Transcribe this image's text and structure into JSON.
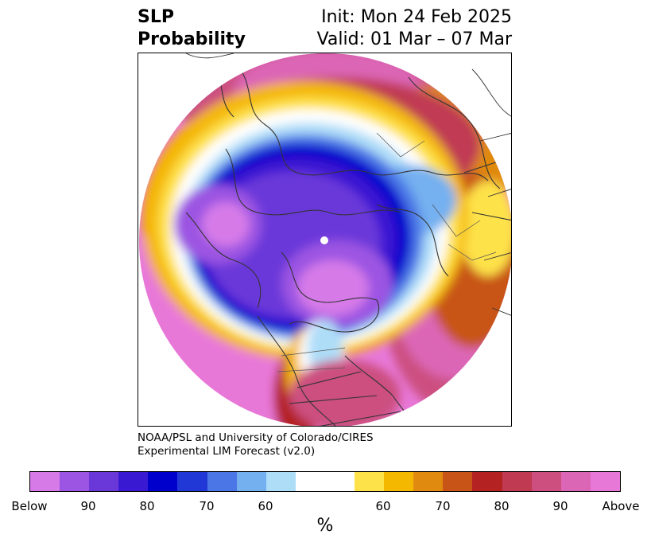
{
  "title": {
    "left_line1": "SLP",
    "left_line2": "Probability",
    "right_line1": "Init: Mon 24 Feb 2025",
    "right_line2": "Valid: 01 Mar – 07 Mar"
  },
  "credit": {
    "line1": "NOAA/PSL and University of Colorado/CIRES",
    "line2": "Experimental LIM Forecast (v2.0)"
  },
  "colorbar": {
    "colors": [
      "#d67ae8",
      "#9c55e2",
      "#6a37d9",
      "#3a19d2",
      "#0000cc",
      "#2238d6",
      "#4a76e6",
      "#74b0f0",
      "#aeddf8",
      "#ffffff",
      "#ffffff",
      "#fee24a",
      "#f4b800",
      "#e08a10",
      "#c85418",
      "#b42222",
      "#c03a52",
      "#cc4f80",
      "#dc66b6",
      "#e878d8"
    ],
    "tick_labels": [
      "Below",
      "90",
      "80",
      "70",
      "60",
      "60",
      "70",
      "80",
      "90",
      "Above"
    ],
    "unit": "%"
  },
  "map": {
    "projection": "north-polar-stereographic",
    "colors": {
      "above_high": "#e878d8",
      "above_mid": "#cc4f80",
      "above_red": "#b42222",
      "above_orange": "#e08a10",
      "above_gold": "#f4b800",
      "above_yellow": "#fee24a",
      "below_high": "#d67ae8",
      "below_purple": "#6a37d9",
      "below_blue": "#0000cc",
      "below_mid": "#4a76e6",
      "below_light": "#aeddf8",
      "neutral": "#ffffff",
      "coastline": "#333333"
    }
  }
}
